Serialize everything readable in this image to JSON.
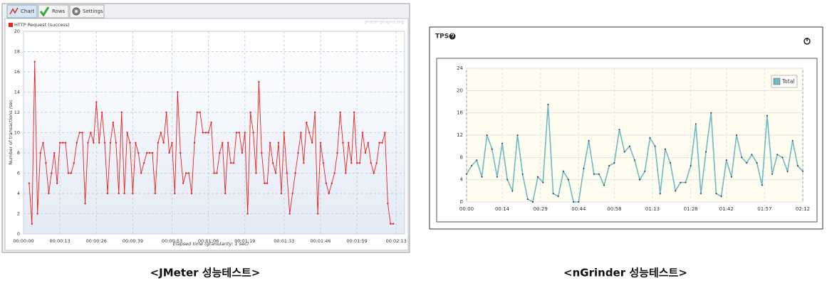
{
  "chart_data": [
    {
      "type": "line",
      "tabs": [
        "Chart",
        "Rows",
        "Settings"
      ],
      "watermark": "jmeter-plugins.org",
      "ylabel": "Number of transactions /sec",
      "xlabel": "Elapsed time (granularity: 1 sec)",
      "legend": "upper left",
      "grid": true,
      "xlim": [
        0,
        136
      ],
      "xticks": [
        {
          "value": 0,
          "label": "00:00:00"
        },
        {
          "value": 13,
          "label": "00:00:13"
        },
        {
          "value": 26,
          "label": "00:00:26"
        },
        {
          "value": 39,
          "label": "00:00:39"
        },
        {
          "value": 53,
          "label": "00:00:53"
        },
        {
          "value": 66,
          "label": "00:01:06"
        },
        {
          "value": 79,
          "label": "00:01:19"
        },
        {
          "value": 93,
          "label": "00:01:33"
        },
        {
          "value": 106,
          "label": "00:01:46"
        },
        {
          "value": 119,
          "label": "00:01:59"
        },
        {
          "value": 133,
          "label": "00:02:13"
        }
      ],
      "ylim": [
        0,
        20
      ],
      "yticks": [
        0,
        2,
        4,
        6,
        8,
        10,
        12,
        14,
        16,
        18,
        20
      ],
      "x": [
        2,
        3,
        4,
        5,
        6,
        7,
        8,
        9,
        10,
        11,
        12,
        13,
        14,
        15,
        16,
        17,
        18,
        19,
        20,
        21,
        22,
        23,
        24,
        25,
        26,
        27,
        28,
        29,
        30,
        31,
        32,
        33,
        34,
        35,
        36,
        37,
        38,
        39,
        40,
        41,
        42,
        43,
        44,
        45,
        46,
        47,
        48,
        49,
        50,
        51,
        52,
        53,
        54,
        55,
        56,
        57,
        58,
        59,
        60,
        61,
        62,
        63,
        64,
        65,
        66,
        67,
        68,
        69,
        70,
        71,
        72,
        73,
        74,
        75,
        76,
        77,
        78,
        79,
        80,
        81,
        82,
        83,
        84,
        85,
        86,
        87,
        88,
        89,
        90,
        91,
        92,
        93,
        94,
        95,
        96,
        97,
        98,
        99,
        100,
        101,
        102,
        103,
        104,
        105,
        106,
        107,
        108,
        109,
        110,
        111,
        112,
        113,
        114,
        115,
        116,
        117,
        118,
        119,
        120,
        121,
        122,
        123,
        124,
        125,
        126,
        127,
        128,
        129,
        130,
        131,
        132
      ],
      "series": [
        {
          "name": "HTTP Request (success)",
          "color": "#e8201f",
          "values": [
            5,
            1,
            17,
            2,
            8,
            9,
            7,
            4,
            6,
            8,
            5,
            9,
            9,
            9,
            6,
            6,
            7,
            9,
            10,
            10,
            3,
            9,
            10,
            9,
            13,
            9,
            12,
            9,
            4,
            9,
            11,
            9,
            4,
            12,
            4,
            10,
            9,
            4,
            9,
            8,
            6,
            7,
            8,
            8,
            8,
            4,
            9,
            10,
            9,
            12,
            8,
            9,
            4,
            14,
            8,
            5,
            6,
            6,
            4,
            9,
            12,
            12,
            10,
            10,
            10,
            11,
            6,
            6,
            8,
            9,
            4,
            9,
            7,
            7,
            10,
            10,
            8,
            10,
            2,
            12,
            10,
            6,
            15,
            8,
            5,
            5,
            9,
            7,
            6,
            9,
            4,
            10,
            6,
            2,
            4,
            6,
            8,
            10,
            7,
            11,
            10,
            9,
            12,
            2,
            9,
            7,
            5,
            4,
            5,
            6,
            8,
            12,
            9,
            6,
            9,
            7,
            12,
            7,
            7,
            10,
            8,
            9,
            7,
            6,
            7,
            9,
            9,
            10,
            3,
            1,
            1
          ]
        }
      ],
      "caption": "<JMeter 성능테스트>"
    },
    {
      "type": "line",
      "title": "TPS",
      "legend": "upper right",
      "grid": true,
      "xlim": [
        0,
        132
      ],
      "xticks": [
        {
          "value": 0,
          "label": "00:00"
        },
        {
          "value": 14,
          "label": "00:14"
        },
        {
          "value": 29,
          "label": "00:29"
        },
        {
          "value": 44,
          "label": "00:44"
        },
        {
          "value": 58,
          "label": "00:58"
        },
        {
          "value": 73,
          "label": "01:13"
        },
        {
          "value": 88,
          "label": "01:28"
        },
        {
          "value": 102,
          "label": "01:42"
        },
        {
          "value": 117,
          "label": "01:57"
        },
        {
          "value": 132,
          "label": "02:12"
        }
      ],
      "ylim": [
        0,
        24
      ],
      "yticks": [
        0,
        4,
        8,
        12,
        16,
        20,
        24
      ],
      "x": [
        0,
        2,
        4,
        6,
        8,
        10,
        12,
        14,
        16,
        18,
        20,
        22,
        24,
        26,
        28,
        30,
        32,
        34,
        36,
        38,
        40,
        42,
        44,
        46,
        48,
        50,
        52,
        54,
        56,
        58,
        60,
        62,
        64,
        66,
        68,
        70,
        72,
        74,
        76,
        78,
        80,
        82,
        84,
        86,
        88,
        90,
        92,
        94,
        96,
        98,
        100,
        102,
        104,
        106,
        108,
        110,
        112,
        114,
        116,
        118,
        120,
        122,
        124,
        126,
        128,
        130,
        132
      ],
      "series": [
        {
          "name": "Total",
          "color": "#6fb9c3",
          "values": [
            5,
            6.5,
            7.5,
            4.5,
            12,
            9.5,
            4.5,
            10.5,
            4,
            2,
            12,
            5,
            0.5,
            0,
            4.5,
            3.5,
            17.5,
            1.5,
            1,
            5.5,
            4,
            0,
            0,
            6,
            11,
            5,
            5,
            3,
            6.5,
            7,
            13,
            9,
            10,
            7.5,
            4,
            5.5,
            11.5,
            10,
            1.5,
            9.5,
            7,
            2,
            3.5,
            3.5,
            6.5,
            14,
            1.5,
            9,
            16,
            1.5,
            1,
            7.5,
            4.5,
            12,
            8,
            7,
            8.5,
            7,
            3,
            15.5,
            5,
            8.5,
            8,
            5.5,
            11,
            6.5,
            5.5
          ]
        }
      ],
      "caption": "<nGrinder 성능테스트>"
    }
  ]
}
